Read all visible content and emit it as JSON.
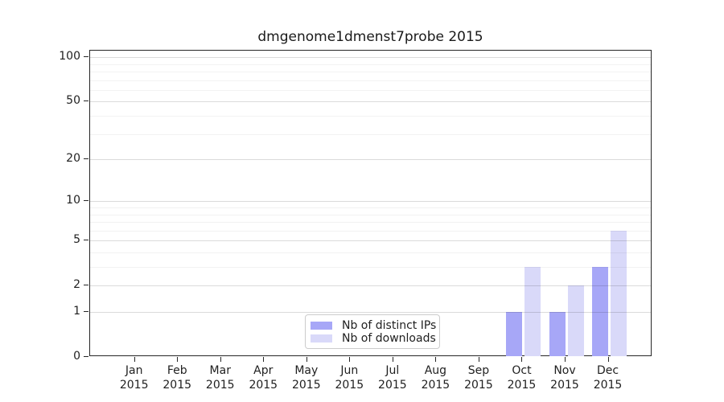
{
  "chart_data": {
    "type": "bar",
    "title": "dmgenome1dmenst7probe 2015",
    "categories": [
      "Jan 2015",
      "Feb 2015",
      "Mar 2015",
      "Apr 2015",
      "May 2015",
      "Jun 2015",
      "Jul 2015",
      "Aug 2015",
      "Sep 2015",
      "Oct 2015",
      "Nov 2015",
      "Dec 2015"
    ],
    "series": [
      {
        "name": "Nb of distinct IPs",
        "color": "#a7a7f7",
        "values": [
          0,
          0,
          0,
          0,
          0,
          0,
          0,
          0,
          0,
          1,
          1,
          3
        ]
      },
      {
        "name": "Nb of downloads",
        "color": "#d9d9f9",
        "values": [
          0,
          0,
          0,
          0,
          0,
          0,
          0,
          0,
          0,
          3,
          2,
          6
        ]
      }
    ],
    "scale": "log1p",
    "ylim": [
      0,
      110
    ],
    "y_major_ticks": [
      0,
      1,
      2,
      5,
      10,
      20,
      50,
      100
    ],
    "y_minor_ticks": [
      3,
      4,
      6,
      7,
      8,
      9,
      30,
      40,
      60,
      70,
      80,
      90
    ],
    "xlabel": "",
    "ylabel": "",
    "grid": true,
    "legend_position": "inside-bottom-center"
  },
  "colors": {
    "grid_major": "rgba(0,0,0,0.14)",
    "grid_minor": "rgba(0,0,0,0.05)",
    "axis": "#262626",
    "background": "#ffffff"
  }
}
